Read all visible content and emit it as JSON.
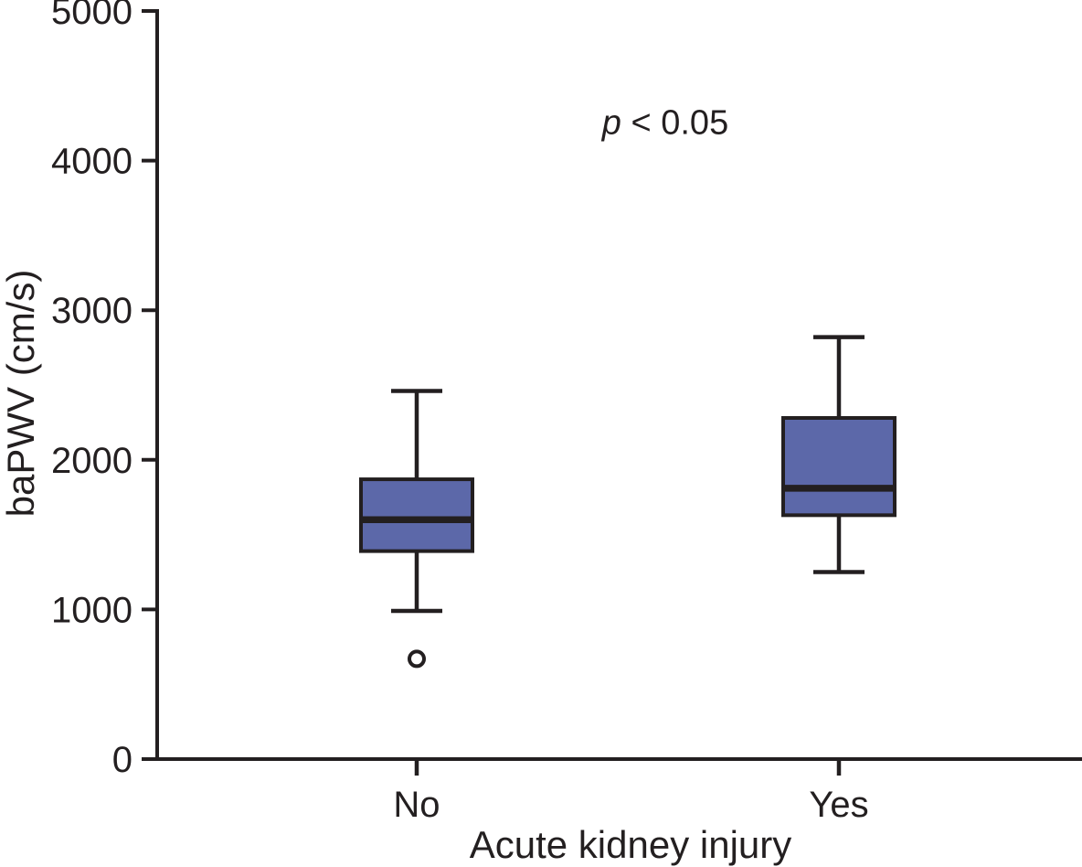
{
  "chart_data": {
    "type": "boxplot",
    "title": "",
    "xlabel": "Acute kidney injury",
    "ylabel": "baPWV (cm/s)",
    "ylim": [
      0,
      5000
    ],
    "yticks": [
      0,
      1000,
      2000,
      3000,
      4000,
      5000
    ],
    "categories": [
      "No",
      "Yes"
    ],
    "annotation": {
      "lead_italic": "p",
      "rest": "< 0.05"
    },
    "colors": {
      "box_fill": "#5C68A9",
      "line": "#231F20",
      "background": "#FFFFFF"
    },
    "grid": false,
    "legend_position": "none",
    "series": [
      {
        "category": "No",
        "whisker_low": 990,
        "q1": 1390,
        "median": 1600,
        "q3": 1870,
        "whisker_high": 2460,
        "outliers": [
          670
        ]
      },
      {
        "category": "Yes",
        "whisker_low": 1250,
        "q1": 1630,
        "median": 1810,
        "q3": 2280,
        "whisker_high": 2820,
        "outliers": []
      }
    ]
  }
}
